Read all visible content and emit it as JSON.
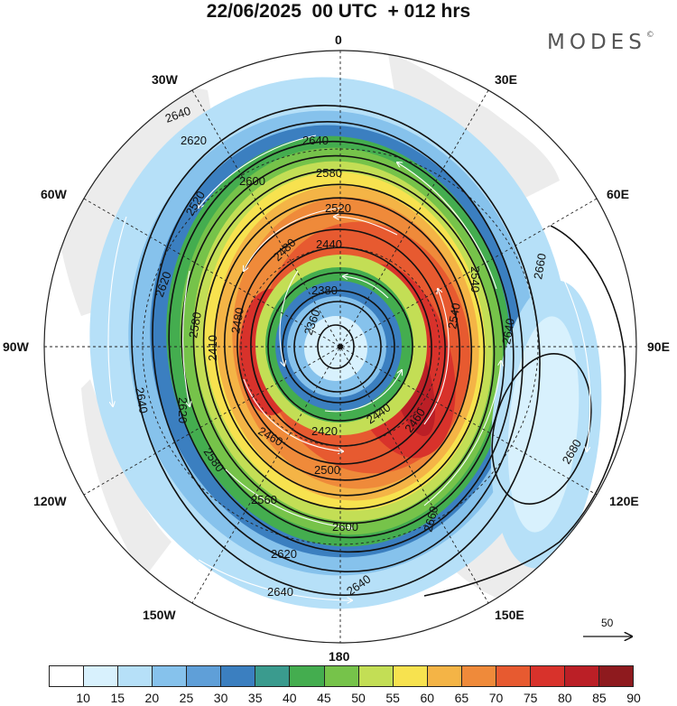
{
  "title": "22/06/2025  00 UTC  + 012 hrs",
  "brand": "MODES",
  "brand_mark": "©",
  "longitude_labels": {
    "n": "0",
    "s": "180",
    "e": "90E",
    "w": "90W",
    "ne": "30E",
    "nw": "30W",
    "ene": "60E",
    "wnw": "60W",
    "ese": "120E",
    "wsw": "120W",
    "sse": "150E",
    "ssw": "150W"
  },
  "contour_labels": [
    "2620",
    "2640",
    "2600",
    "2580",
    "2520",
    "2440",
    "2480",
    "2380",
    "2360",
    "2580",
    "2480",
    "2410",
    "2520",
    "2460",
    "2500",
    "2420",
    "2440",
    "2460",
    "2540",
    "2560",
    "2580",
    "2600",
    "2620",
    "2640",
    "2660",
    "2640",
    "2680",
    "2660",
    "2640",
    "2620"
  ],
  "reference_vector_label": "50",
  "colorbar": {
    "ticks": [
      "10",
      "15",
      "20",
      "25",
      "30",
      "35",
      "40",
      "45",
      "50",
      "55",
      "60",
      "65",
      "70",
      "75",
      "80",
      "85",
      "90"
    ],
    "colors": [
      "#ffffff",
      "#d8f1fd",
      "#b6e0f8",
      "#86c2ec",
      "#5f9fd8",
      "#3b7fc0",
      "#3a9b8e",
      "#44ad4f",
      "#76c34a",
      "#c3de55",
      "#f7e24f",
      "#f4b446",
      "#ef8a3a",
      "#e75a30",
      "#d8322b",
      "#bb1f26",
      "#8e1a1e"
    ]
  },
  "colors": {
    "land": "#ececec",
    "contour": "#111111",
    "streamline": "#ffffff"
  }
}
